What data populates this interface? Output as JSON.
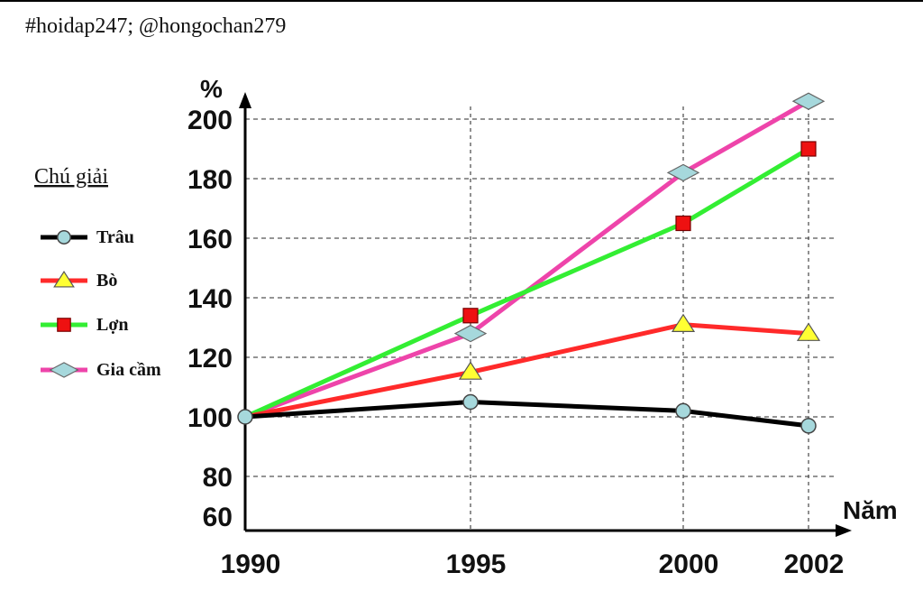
{
  "header": {
    "text": "#hoidap247; @hongochan279"
  },
  "chart_data": {
    "type": "line",
    "title": "",
    "xlabel": "Năm",
    "ylabel": "%",
    "x": [
      1990,
      1995,
      2000,
      2002
    ],
    "ylim": [
      60,
      210
    ],
    "yticks": [
      60,
      80,
      100,
      120,
      140,
      160,
      180,
      200
    ],
    "series": [
      {
        "name": "Trâu",
        "values": [
          100,
          105,
          102,
          97
        ],
        "color": "#000000",
        "marker": "circle",
        "marker_color": "#a6d8dc"
      },
      {
        "name": "Bò",
        "values": [
          100,
          115,
          131,
          128
        ],
        "color": "#ff2a2a",
        "marker": "triangle",
        "marker_color": "#ffff33"
      },
      {
        "name": "Lợn",
        "values": [
          100,
          134,
          165,
          190
        ],
        "color": "#33ee33",
        "marker": "square",
        "marker_color": "#ee1111"
      },
      {
        "name": "Gia cầm",
        "values": [
          100,
          128,
          182,
          206
        ],
        "color": "#ee44aa",
        "marker": "diamond",
        "marker_color": "#a6d8dc"
      }
    ],
    "legend": {
      "title": "Chú giải",
      "placement": "left"
    }
  }
}
